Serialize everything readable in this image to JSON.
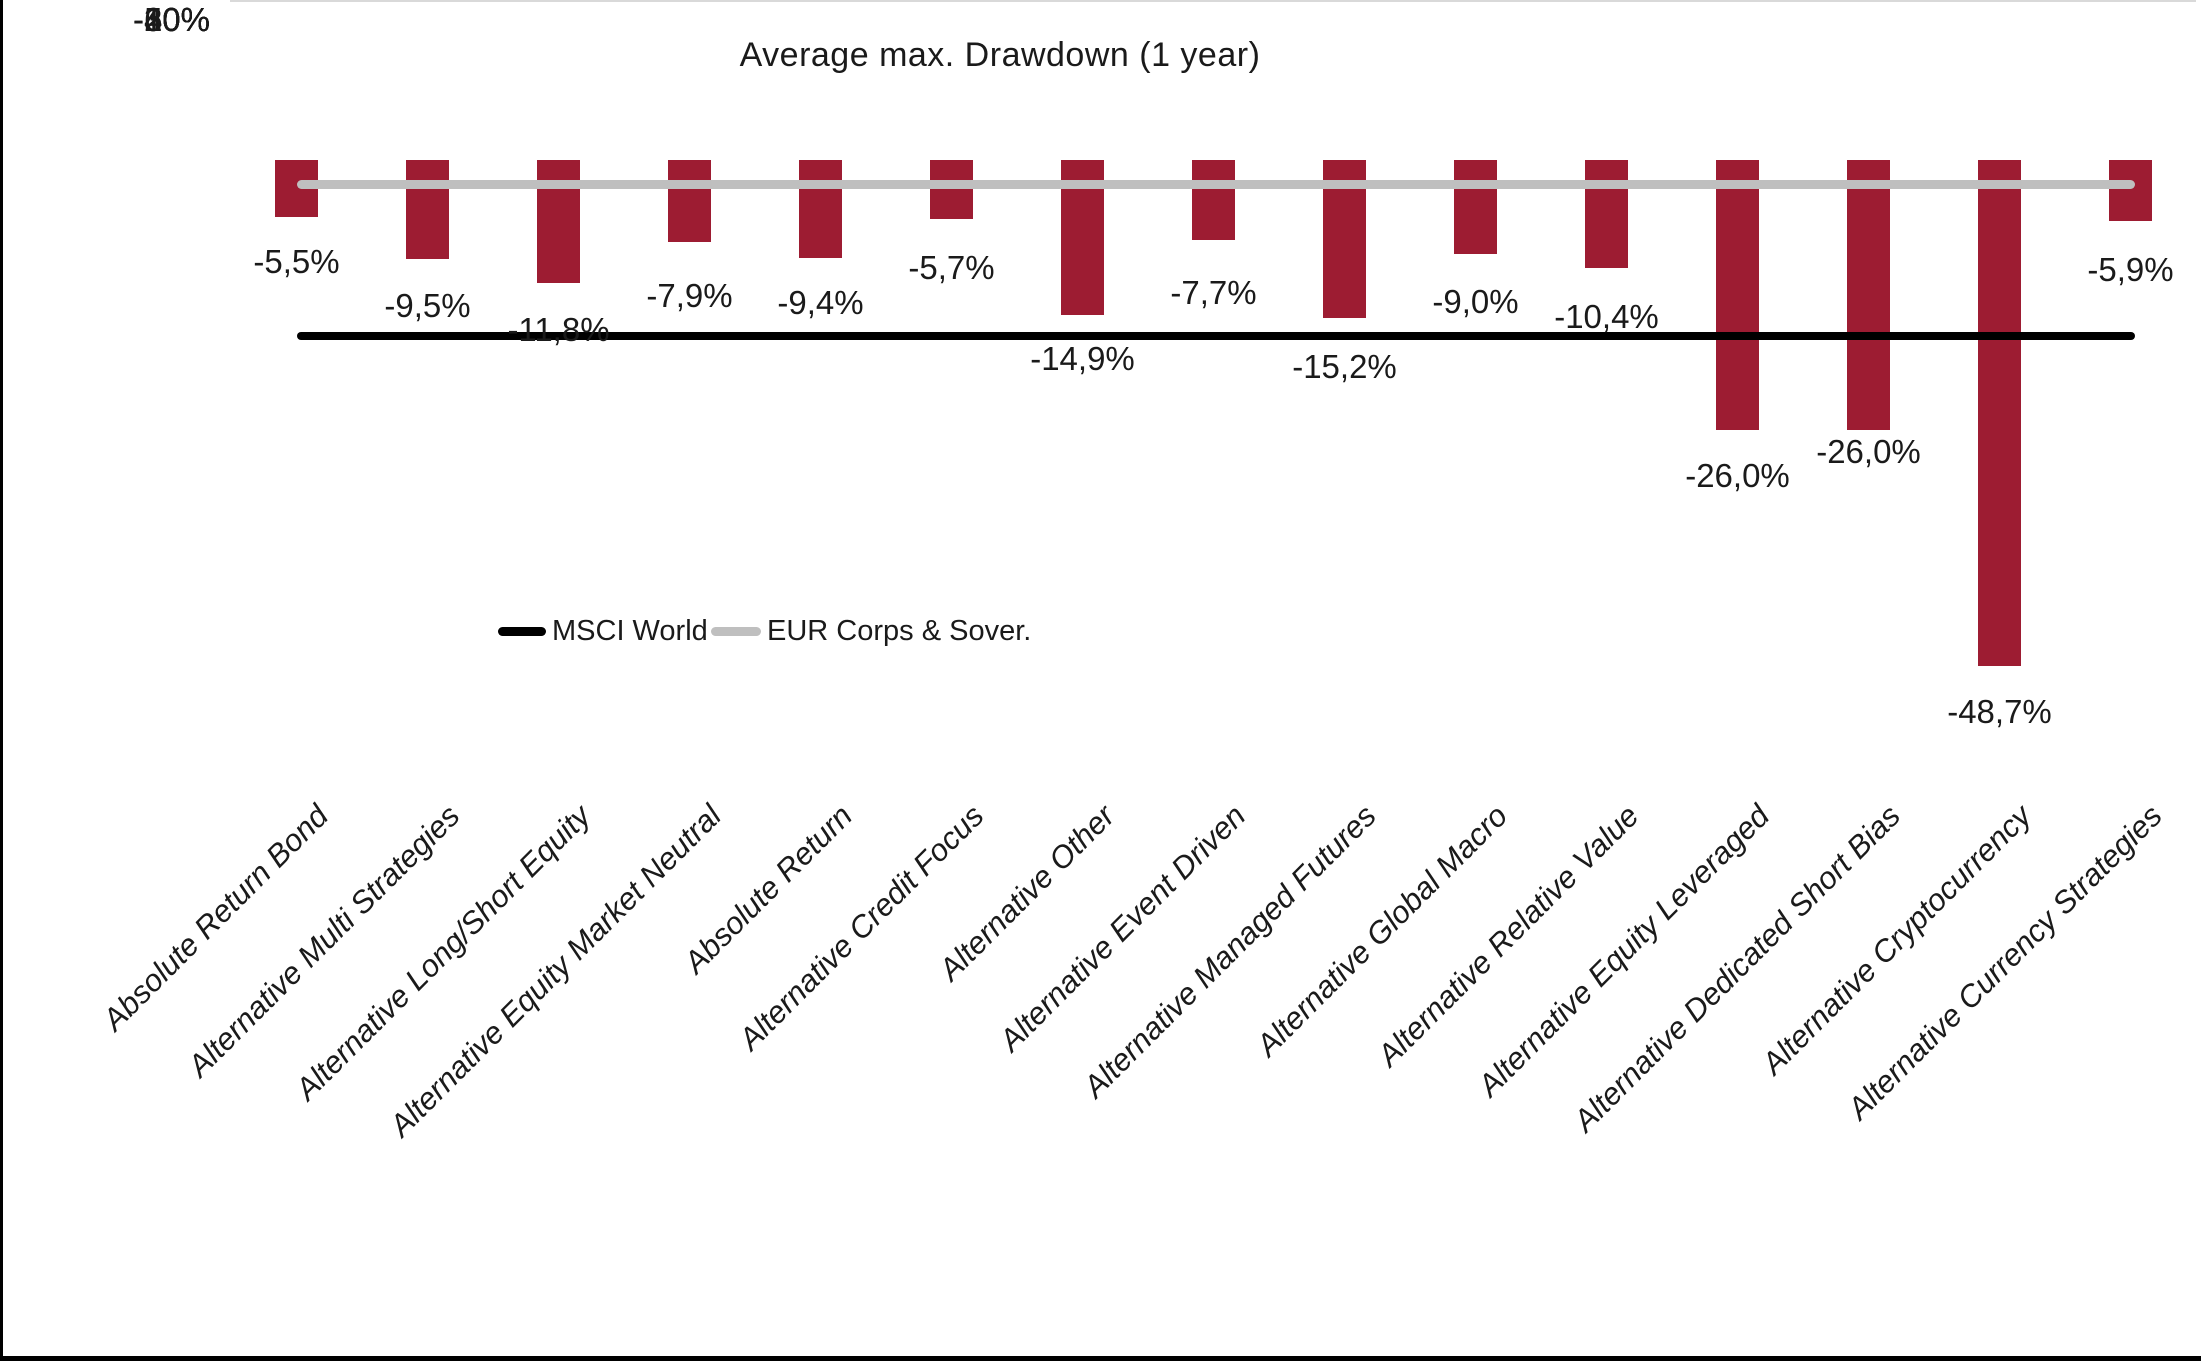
{
  "title": "Average max. Drawdown (1 year)",
  "y_axis": {
    "tick_labels": [
      "0%",
      "-10%",
      "-20%",
      "-30%",
      "-40%",
      "-50%",
      "-60%"
    ]
  },
  "legend": {
    "items": [
      {
        "label": "MSCI World",
        "color": "#000000"
      },
      {
        "label": "EUR Corps & Sover.",
        "color": "#bfbfbf"
      }
    ]
  },
  "chart_data": {
    "type": "bar",
    "title": "Average max. Drawdown (1 year)",
    "categories": [
      "Absolute Return Bond",
      "Alternative Multi Strategies",
      "Alternative Long/Short Equity",
      "Alternative Equity Market Neutral",
      "Absolute Return",
      "Alternative Credit Focus",
      "Alternative Other",
      "Alternative Event Driven",
      "Alternative Managed Futures",
      "Alternative Global Macro",
      "Alternative Relative Value",
      "Alternative Equity Leveraged",
      "Alternative Dedicated Short Bias",
      "Alternative Cryptocurrency",
      "Alternative Currency Strategies"
    ],
    "values": [
      -5.5,
      -9.5,
      -11.8,
      -7.9,
      -9.4,
      -5.7,
      -14.9,
      -7.7,
      -15.2,
      -9.0,
      -10.4,
      -26.0,
      -26.0,
      -48.7,
      -5.9
    ],
    "data_labels": [
      "-5,5%",
      "-9,5%",
      "-11,8%",
      "-7,9%",
      "-9,4%",
      "-5,7%",
      "-14,9%",
      "-7,7%",
      "-15,2%",
      "-9,0%",
      "-10,4%",
      "-26,0%",
      "-26,0%",
      "-48,7%",
      "-5,9%"
    ],
    "reference_lines": [
      {
        "name": "MSCI World",
        "value": -17.0,
        "color": "#000000"
      },
      {
        "name": "EUR Corps & Sover.",
        "value": -2.4,
        "color": "#bfbfbf"
      }
    ],
    "bar_color": "#9d1c32",
    "xlabel": "",
    "ylabel": "",
    "ylim": [
      -60,
      0
    ],
    "y_tick_step": 10,
    "grid": true,
    "gridline_color": "#d9d9d9",
    "legend_position": "inside-left-middle",
    "label_y_centers": [
      262,
      306,
      330,
      296,
      303,
      268,
      359,
      293,
      367,
      302,
      317,
      476,
      452,
      712,
      270
    ]
  }
}
